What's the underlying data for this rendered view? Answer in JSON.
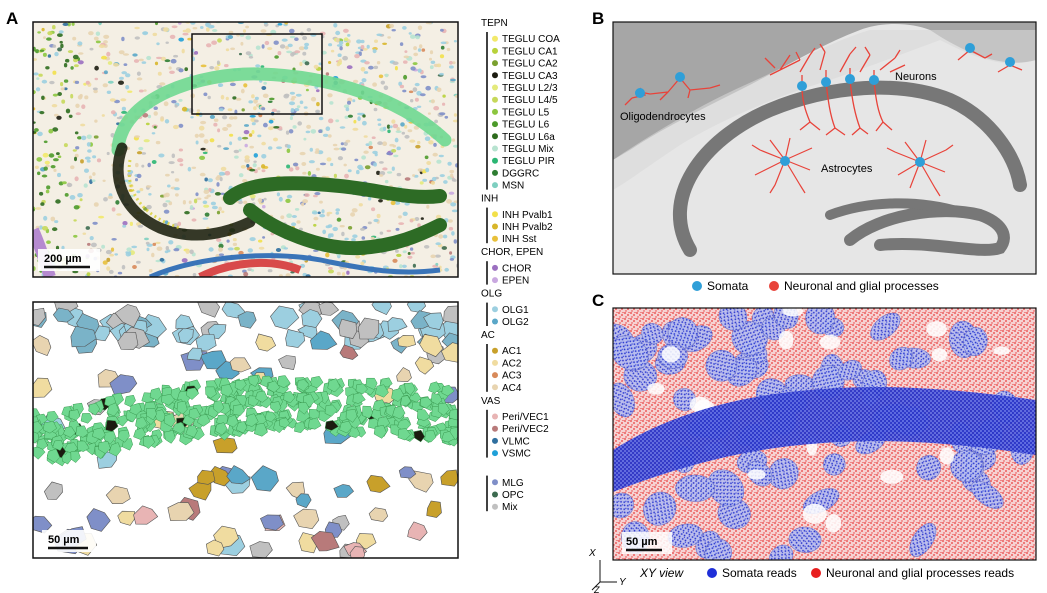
{
  "panels": {
    "a": "A",
    "b": "B",
    "c": "C"
  },
  "panel_a": {
    "scale_top": "200 µm",
    "scale_bottom": "50 µm"
  },
  "legend": {
    "groups": [
      {
        "title": "TEPN",
        "items": [
          {
            "label": "TEGLU COA",
            "color": "#f2e96a"
          },
          {
            "label": "TEGLU CA1",
            "color": "#b8d23a"
          },
          {
            "label": "TEGLU CA2",
            "color": "#7aa02f"
          },
          {
            "label": "TEGLU CA3",
            "color": "#1c1c10"
          },
          {
            "label": "TEGLU L2/3",
            "color": "#e4ea7c"
          },
          {
            "label": "TEGLU L4/5",
            "color": "#c6d85a"
          },
          {
            "label": "TEGLU L5",
            "color": "#8cc63f"
          },
          {
            "label": "TEGLU L6",
            "color": "#4c9a2a"
          },
          {
            "label": "TEGLU L6a",
            "color": "#2e6b1e"
          },
          {
            "label": "TEGLU Mix",
            "color": "#b7e3d0"
          },
          {
            "label": "TEGLU PIR",
            "color": "#2bb673"
          },
          {
            "label": "DGGRC",
            "color": "#2e7d32"
          },
          {
            "label": "MSN",
            "color": "#7ecfc0"
          }
        ]
      },
      {
        "title": "INH",
        "items": [
          {
            "label": "INH Pvalb1",
            "color": "#f2e04a"
          },
          {
            "label": "INH Pvalb2",
            "color": "#d8b62a"
          },
          {
            "label": "INH Sst",
            "color": "#e8c03a"
          }
        ]
      },
      {
        "title": "CHOR, EPEN",
        "items": [
          {
            "label": "CHOR",
            "color": "#9b6fc0"
          },
          {
            "label": "EPEN",
            "color": "#c9a8e0"
          }
        ]
      },
      {
        "title": "OLG",
        "items": [
          {
            "label": "OLG1",
            "color": "#9ccfe0"
          },
          {
            "label": "OLG2",
            "color": "#5aa7c8"
          }
        ]
      },
      {
        "title": "AC",
        "items": [
          {
            "label": "AC1",
            "color": "#c8a02a"
          },
          {
            "label": "AC2",
            "color": "#f0dca0"
          },
          {
            "label": "AC3",
            "color": "#d88a5a"
          },
          {
            "label": "AC4",
            "color": "#e8d4b0"
          }
        ]
      },
      {
        "title": "VAS",
        "items": [
          {
            "label": "Peri/VEC1",
            "color": "#e8b4b4"
          },
          {
            "label": "Peri/VEC2",
            "color": "#b87a7a"
          },
          {
            "label": "VLMC",
            "color": "#2f6f9f"
          },
          {
            "label": "VSMC",
            "color": "#1fa0d8"
          }
        ]
      },
      {
        "title": "",
        "items": [
          {
            "label": "MLG",
            "color": "#7f8fc8"
          },
          {
            "label": "OPC",
            "color": "#3d6b50"
          },
          {
            "label": "Mix",
            "color": "#c0c0c0"
          }
        ]
      }
    ]
  },
  "panel_b": {
    "neurons": "Neurons",
    "oligodendrocytes": "Oligodendrocytes",
    "astrocytes": "Astrocytes",
    "legend_somata": "Somata",
    "legend_processes": "Neuronal and glial processes",
    "somata_color": "#2f9fd8",
    "process_color": "#e8433a"
  },
  "panel_c": {
    "scale": "50 µm",
    "view_label": "XY view",
    "axis_x": "X",
    "axis_y": "Y",
    "axis_z": "Z",
    "legend_somata": "Somata reads",
    "legend_processes": "Neuronal and glial processes reads",
    "somata_color": "#1f2fd8",
    "process_color": "#e81e1e"
  }
}
